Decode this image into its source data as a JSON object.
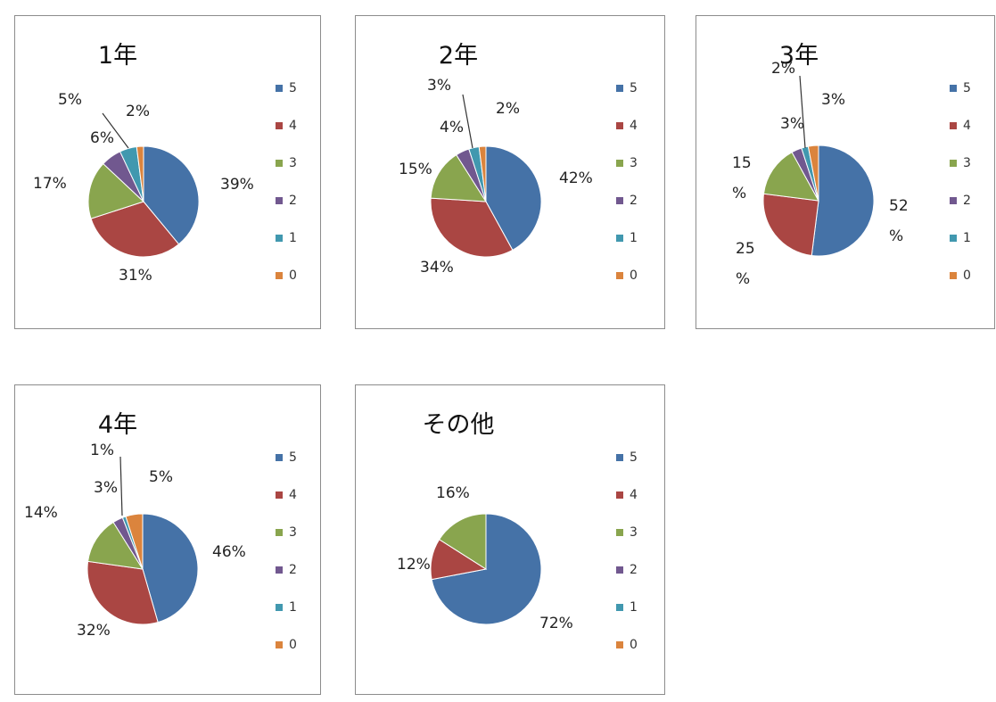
{
  "colors": [
    "#4572a7",
    "#aa4643",
    "#89a54e",
    "#71588f",
    "#4198af",
    "#db843d"
  ],
  "chart_data": [
    {
      "type": "pie",
      "title": "1年",
      "categories": [
        "5",
        "4",
        "3",
        "2",
        "1",
        "0"
      ],
      "values": [
        39,
        31,
        17,
        6,
        5,
        2
      ],
      "labels": [
        "39%",
        "31%",
        "17%",
        "6%",
        "5%",
        "2%"
      ],
      "legend_position": "right"
    },
    {
      "type": "pie",
      "title": "2年",
      "categories": [
        "5",
        "4",
        "3",
        "2",
        "1",
        "0"
      ],
      "values": [
        42,
        34,
        15,
        4,
        3,
        2
      ],
      "labels": [
        "42%",
        "34%",
        "15%",
        "4%",
        "3%",
        "2%"
      ],
      "legend_position": "right"
    },
    {
      "type": "pie",
      "title": "3年",
      "categories": [
        "5",
        "4",
        "3",
        "2",
        "1",
        "0"
      ],
      "values": [
        52,
        25,
        15,
        3,
        2,
        3
      ],
      "labels": [
        "52\n%",
        "25\n%",
        "15\n%",
        "3%",
        "2%",
        "3%"
      ],
      "legend_position": "right"
    },
    {
      "type": "pie",
      "title": "4年",
      "categories": [
        "5",
        "4",
        "3",
        "2",
        "1",
        "0"
      ],
      "values": [
        46,
        32,
        14,
        3,
        1,
        5
      ],
      "labels": [
        "46%",
        "32%",
        "14%",
        "3%",
        "1%",
        "5%"
      ],
      "legend_position": "right"
    },
    {
      "type": "pie",
      "title": "その他",
      "categories": [
        "5",
        "4",
        "3",
        "2",
        "1",
        "0"
      ],
      "values": [
        72,
        12,
        16,
        0,
        0,
        0
      ],
      "labels": [
        "72%",
        "12%",
        "16%",
        "",
        "",
        ""
      ],
      "legend_position": "right"
    }
  ]
}
